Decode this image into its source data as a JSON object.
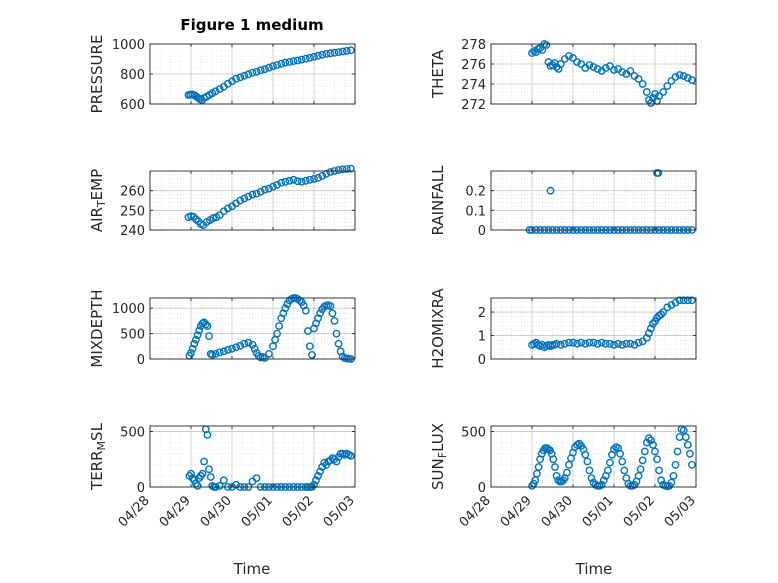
{
  "figure": {
    "title": "Figure 1 medium",
    "xlabel": "Time",
    "marker_color": "#0072BD",
    "x_ticks": [
      "04/28",
      "04/29",
      "04/30",
      "05/01",
      "05/02",
      "05/03"
    ]
  },
  "chart_data": [
    {
      "type": "scatter",
      "ylabel": "PRESSURE",
      "ylim": [
        600,
        1000
      ],
      "yticks": [
        600,
        800,
        1000
      ],
      "grid": true,
      "x": [
        0.94,
        0.98,
        1.03,
        1.08,
        1.13,
        1.18,
        1.22,
        1.27,
        1.32,
        1.38,
        1.45,
        1.52,
        1.6,
        1.7,
        1.8,
        1.9,
        2.0,
        2.1,
        2.2,
        2.3,
        2.4,
        2.5,
        2.6,
        2.7,
        2.8,
        2.9,
        3.0,
        3.1,
        3.2,
        3.3,
        3.4,
        3.5,
        3.6,
        3.7,
        3.8,
        3.9,
        4.0,
        4.1,
        4.2,
        4.3,
        4.4,
        4.5,
        4.6,
        4.7,
        4.8,
        4.9
      ],
      "y": [
        660,
        662,
        664,
        660,
        650,
        640,
        632,
        625,
        640,
        648,
        660,
        672,
        685,
        700,
        715,
        735,
        752,
        768,
        778,
        788,
        798,
        808,
        815,
        825,
        832,
        842,
        852,
        860,
        868,
        876,
        880,
        886,
        890,
        896,
        902,
        908,
        915,
        922,
        928,
        934,
        938,
        942,
        946,
        950,
        954,
        958
      ]
    },
    {
      "type": "scatter",
      "ylabel": "THETA",
      "ylim": [
        272,
        278
      ],
      "yticks": [
        272,
        274,
        276,
        278
      ],
      "grid": true,
      "x": [
        1.0,
        1.05,
        1.1,
        1.15,
        1.2,
        1.25,
        1.3,
        1.35,
        1.4,
        1.45,
        1.5,
        1.55,
        1.6,
        1.65,
        1.7,
        1.8,
        1.9,
        2.0,
        2.1,
        2.2,
        2.3,
        2.4,
        2.5,
        2.6,
        2.7,
        2.8,
        2.9,
        3.0,
        3.1,
        3.2,
        3.3,
        3.4,
        3.5,
        3.6,
        3.7,
        3.8,
        3.85,
        3.9,
        3.95,
        4.0,
        4.05,
        4.1,
        4.2,
        4.3,
        4.4,
        4.5,
        4.6,
        4.7,
        4.8,
        4.9
      ],
      "y": [
        277.1,
        277.3,
        277.2,
        277.5,
        277.6,
        277.4,
        278.0,
        277.9,
        276.2,
        275.8,
        275.9,
        276.1,
        275.7,
        275.5,
        276.0,
        276.5,
        276.8,
        276.6,
        276.2,
        276.0,
        275.6,
        275.9,
        275.7,
        275.5,
        275.3,
        275.6,
        275.8,
        275.4,
        275.5,
        275.2,
        275.0,
        275.3,
        274.8,
        274.5,
        274.0,
        273.2,
        272.4,
        272.1,
        272.6,
        273.0,
        272.3,
        272.8,
        273.2,
        273.8,
        274.3,
        274.7,
        274.9,
        274.8,
        274.6,
        274.4
      ]
    },
    {
      "type": "scatter",
      "ylabel": "AIR_T_EMP",
      "ylim": [
        240,
        270
      ],
      "yticks": [
        240,
        250,
        260
      ],
      "grid": true,
      "x": [
        0.94,
        1.0,
        1.06,
        1.12,
        1.18,
        1.24,
        1.3,
        1.38,
        1.46,
        1.54,
        1.62,
        1.7,
        1.8,
        1.9,
        2.0,
        2.1,
        2.2,
        2.3,
        2.4,
        2.5,
        2.6,
        2.7,
        2.8,
        2.9,
        3.0,
        3.1,
        3.2,
        3.3,
        3.4,
        3.5,
        3.6,
        3.7,
        3.8,
        3.9,
        4.0,
        4.1,
        4.2,
        4.3,
        4.4,
        4.5,
        4.6,
        4.7,
        4.8,
        4.9
      ],
      "y": [
        246.5,
        247.0,
        246.8,
        245.5,
        244.5,
        243.0,
        242.5,
        244.0,
        245.0,
        246.0,
        246.5,
        247.5,
        249.5,
        251.0,
        252.0,
        253.5,
        255.0,
        256.0,
        257.0,
        258.0,
        258.5,
        259.5,
        260.5,
        261.0,
        262.0,
        263.0,
        264.0,
        264.5,
        265.0,
        265.5,
        264.8,
        264.5,
        265.0,
        265.5,
        266.0,
        266.5,
        267.5,
        268.5,
        269.5,
        270.0,
        270.5,
        270.8,
        271.0,
        271.2
      ]
    },
    {
      "type": "scatter",
      "ylabel": "RAINFALL",
      "ylim": [
        0,
        0.3
      ],
      "yticks": [
        0,
        0.1,
        0.2
      ],
      "grid": true,
      "x": [
        0.94,
        1.0,
        1.1,
        1.2,
        1.3,
        1.4,
        1.5,
        1.6,
        1.7,
        1.8,
        1.9,
        2.0,
        2.1,
        2.2,
        2.3,
        2.4,
        2.5,
        2.6,
        2.7,
        2.8,
        2.9,
        3.0,
        3.1,
        3.2,
        3.3,
        3.4,
        3.5,
        3.6,
        3.7,
        3.8,
        3.9,
        4.0,
        4.1,
        4.2,
        4.3,
        4.4,
        4.5,
        4.6,
        4.7,
        4.8,
        4.9,
        1.45,
        4.05,
        4.08
      ],
      "y": [
        0,
        0,
        0,
        0,
        0,
        0,
        0,
        0,
        0,
        0,
        0,
        0,
        0,
        0,
        0,
        0,
        0,
        0,
        0,
        0,
        0,
        0,
        0,
        0,
        0,
        0,
        0,
        0,
        0,
        0,
        0,
        0,
        0,
        0,
        0,
        0,
        0,
        0,
        0,
        0,
        0,
        0.2,
        0.29,
        0.29
      ]
    },
    {
      "type": "scatter",
      "ylabel": "MIXDEPTH",
      "ylim": [
        0,
        1200
      ],
      "yticks": [
        0,
        500,
        1000
      ],
      "grid": true,
      "x": [
        0.96,
        1.0,
        1.04,
        1.08,
        1.12,
        1.16,
        1.2,
        1.24,
        1.28,
        1.32,
        1.36,
        1.4,
        1.44,
        1.48,
        1.52,
        1.6,
        1.7,
        1.8,
        1.9,
        2.0,
        2.1,
        2.2,
        2.3,
        2.4,
        2.5,
        2.55,
        2.6,
        2.65,
        2.7,
        2.75,
        2.8,
        2.9,
        3.0,
        3.05,
        3.1,
        3.15,
        3.2,
        3.25,
        3.3,
        3.35,
        3.4,
        3.45,
        3.5,
        3.55,
        3.6,
        3.65,
        3.7,
        3.75,
        3.8,
        3.85,
        3.9,
        3.95,
        4.0,
        4.05,
        4.1,
        4.15,
        4.2,
        4.25,
        4.3,
        4.35,
        4.4,
        4.45,
        4.5,
        4.55,
        4.6,
        4.65,
        4.7,
        4.75,
        4.8,
        4.85,
        4.9
      ],
      "y": [
        60,
        120,
        200,
        300,
        380,
        470,
        560,
        650,
        700,
        720,
        680,
        650,
        450,
        100,
        80,
        100,
        130,
        150,
        180,
        200,
        230,
        260,
        300,
        320,
        280,
        200,
        120,
        60,
        30,
        40,
        20,
        100,
        250,
        380,
        500,
        650,
        800,
        900,
        1000,
        1080,
        1150,
        1180,
        1200,
        1200,
        1180,
        1150,
        1120,
        1050,
        950,
        550,
        250,
        80,
        600,
        700,
        800,
        900,
        980,
        1030,
        1050,
        1060,
        1040,
        900,
        750,
        500,
        300,
        150,
        50,
        20,
        10,
        5,
        0
      ]
    },
    {
      "type": "scatter",
      "ylabel": "H2OMIXRA",
      "ylim": [
        0,
        2.6
      ],
      "yticks": [
        0,
        1,
        2
      ],
      "grid": true,
      "x": [
        1.0,
        1.05,
        1.1,
        1.15,
        1.2,
        1.25,
        1.3,
        1.35,
        1.4,
        1.45,
        1.5,
        1.55,
        1.6,
        1.7,
        1.8,
        1.9,
        2.0,
        2.1,
        2.2,
        2.3,
        2.4,
        2.5,
        2.6,
        2.7,
        2.8,
        2.9,
        3.0,
        3.1,
        3.2,
        3.3,
        3.4,
        3.5,
        3.6,
        3.7,
        3.8,
        3.85,
        3.9,
        3.95,
        4.0,
        4.05,
        4.1,
        4.15,
        4.2,
        4.3,
        4.4,
        4.5,
        4.6,
        4.7,
        4.8,
        4.9
      ],
      "y": [
        0.6,
        0.65,
        0.7,
        0.6,
        0.55,
        0.6,
        0.5,
        0.55,
        0.6,
        0.55,
        0.6,
        0.6,
        0.65,
        0.6,
        0.65,
        0.7,
        0.7,
        0.65,
        0.7,
        0.65,
        0.7,
        0.7,
        0.65,
        0.7,
        0.65,
        0.65,
        0.6,
        0.65,
        0.6,
        0.65,
        0.65,
        0.6,
        0.7,
        0.75,
        0.9,
        1.1,
        1.3,
        1.5,
        1.6,
        1.75,
        1.85,
        1.9,
        2.0,
        2.2,
        2.3,
        2.4,
        2.5,
        2.5,
        2.5,
        2.5
      ]
    },
    {
      "type": "scatter",
      "ylabel": "TERR_M_SL",
      "ylim": [
        0,
        550
      ],
      "yticks": [
        0,
        500
      ],
      "grid": true,
      "x": [
        0.96,
        1.0,
        1.04,
        1.08,
        1.12,
        1.16,
        1.2,
        1.24,
        1.28,
        1.32,
        1.36,
        1.4,
        1.44,
        1.48,
        1.52,
        1.56,
        1.6,
        1.7,
        1.8,
        1.9,
        2.0,
        2.1,
        2.2,
        2.3,
        2.4,
        2.5,
        2.6,
        2.7,
        2.8,
        2.9,
        3.0,
        3.1,
        3.2,
        3.3,
        3.4,
        3.5,
        3.6,
        3.7,
        3.8,
        3.85,
        3.9,
        3.95,
        4.0,
        4.05,
        4.1,
        4.15,
        4.2,
        4.25,
        4.3,
        4.35,
        4.4,
        4.45,
        4.5,
        4.55,
        4.6,
        4.65,
        4.7,
        4.75,
        4.8,
        4.85,
        4.9
      ],
      "y": [
        100,
        120,
        80,
        60,
        30,
        10,
        80,
        100,
        120,
        230,
        520,
        470,
        160,
        90,
        10,
        0,
        0,
        10,
        60,
        0,
        0,
        20,
        0,
        0,
        0,
        50,
        80,
        0,
        0,
        0,
        0,
        0,
        0,
        0,
        0,
        0,
        0,
        0,
        0,
        0,
        0,
        0,
        20,
        60,
        100,
        140,
        180,
        220,
        200,
        230,
        240,
        260,
        250,
        230,
        270,
        300,
        300,
        290,
        300,
        290,
        280
      ]
    },
    {
      "type": "scatter",
      "ylabel": "SUN_F_LUX",
      "ylim": [
        0,
        550
      ],
      "yticks": [
        0,
        500
      ],
      "grid": true,
      "x": [
        1.0,
        1.04,
        1.08,
        1.12,
        1.16,
        1.2,
        1.24,
        1.28,
        1.32,
        1.36,
        1.4,
        1.44,
        1.48,
        1.52,
        1.56,
        1.6,
        1.64,
        1.68,
        1.72,
        1.76,
        1.8,
        1.85,
        1.9,
        1.95,
        2.0,
        2.05,
        2.1,
        2.15,
        2.2,
        2.25,
        2.3,
        2.35,
        2.4,
        2.45,
        2.5,
        2.55,
        2.6,
        2.65,
        2.7,
        2.75,
        2.8,
        2.85,
        2.9,
        2.95,
        3.0,
        3.05,
        3.1,
        3.15,
        3.2,
        3.25,
        3.3,
        3.35,
        3.4,
        3.45,
        3.5,
        3.55,
        3.6,
        3.65,
        3.7,
        3.75,
        3.8,
        3.85,
        3.9,
        3.95,
        4.0,
        4.05,
        4.1,
        4.15,
        4.2,
        4.25,
        4.3,
        4.35,
        4.4,
        4.45,
        4.5,
        4.55,
        4.6,
        4.65,
        4.7,
        4.75,
        4.8,
        4.85,
        4.9
      ],
      "y": [
        10,
        30,
        60,
        120,
        180,
        250,
        300,
        330,
        350,
        350,
        340,
        330,
        300,
        250,
        180,
        100,
        60,
        50,
        50,
        60,
        80,
        130,
        200,
        260,
        310,
        360,
        380,
        390,
        370,
        340,
        290,
        230,
        150,
        80,
        40,
        20,
        10,
        10,
        20,
        60,
        100,
        150,
        220,
        290,
        340,
        360,
        350,
        300,
        230,
        150,
        80,
        30,
        10,
        10,
        20,
        50,
        100,
        160,
        240,
        320,
        400,
        440,
        420,
        380,
        320,
        250,
        150,
        60,
        20,
        10,
        5,
        10,
        40,
        100,
        200,
        320,
        450,
        520,
        510,
        450,
        380,
        300,
        200
      ]
    }
  ]
}
